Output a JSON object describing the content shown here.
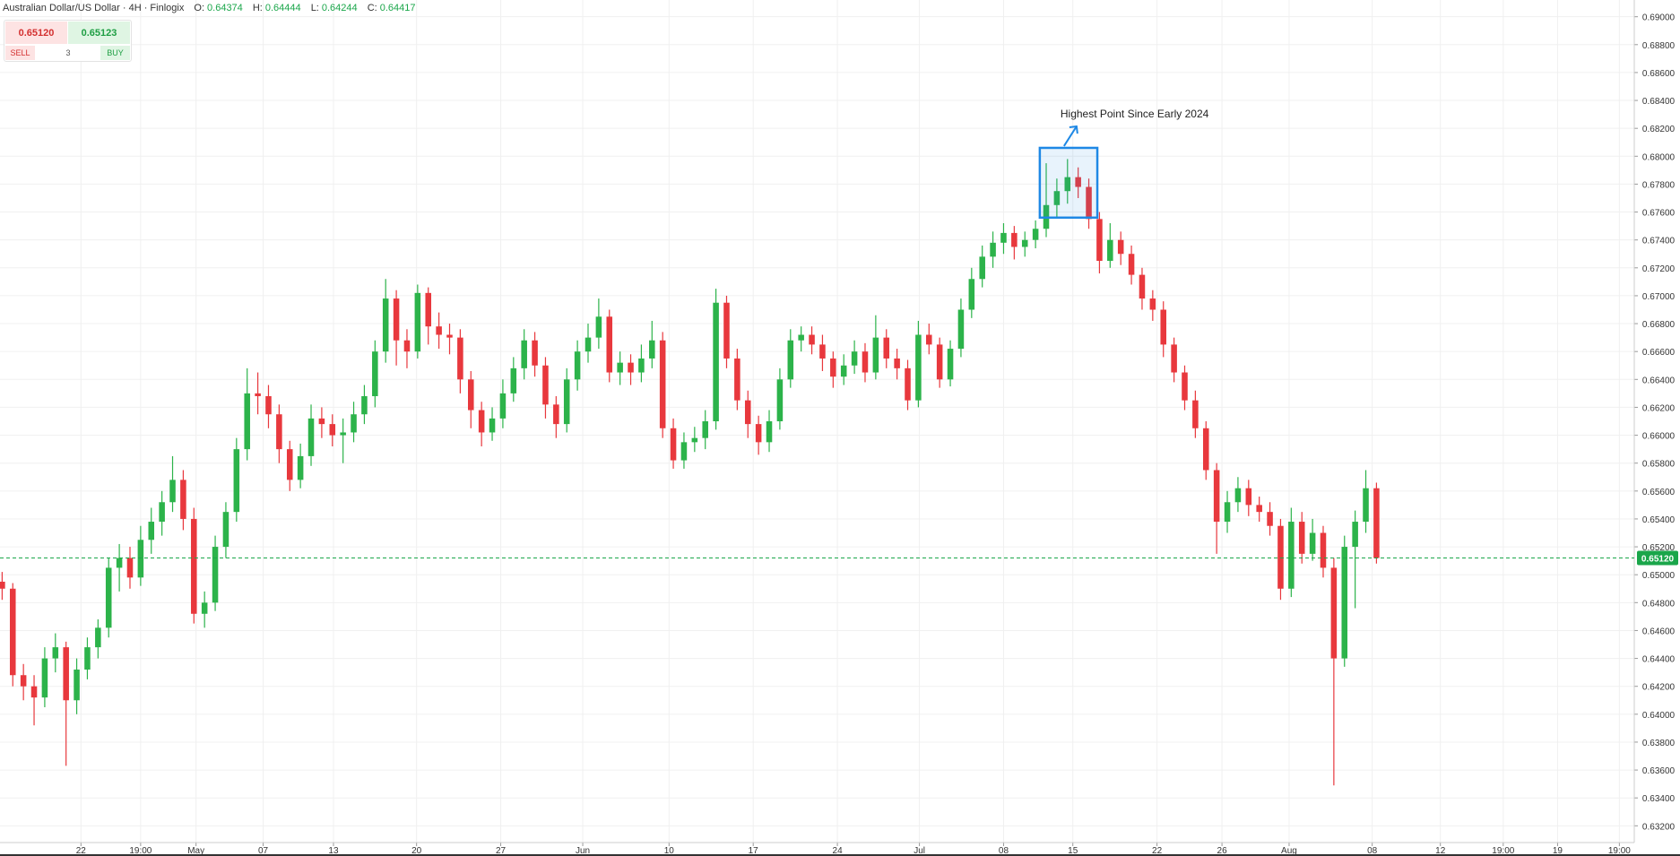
{
  "header": {
    "title": "Australian Dollar/US Dollar · 4H · Finlogix",
    "ohlc": [
      {
        "key": "O:",
        "value": "0.64374"
      },
      {
        "key": "H:",
        "value": "0.64444"
      },
      {
        "key": "L:",
        "value": "0.64244"
      },
      {
        "key": "C:",
        "value": "0.64417"
      }
    ]
  },
  "trade_widget": {
    "sell_price": "0.65120",
    "buy_price": "0.65123",
    "sell_label": "SELL",
    "quantity": "3",
    "buy_label": "BUY"
  },
  "chart_data": {
    "type": "candlestick",
    "up_color": "#2cb34a",
    "down_color": "#e8383d",
    "grid": true,
    "ylim": [
      0.6308,
      0.6912
    ],
    "xlim": [
      -0.2,
      153.2
    ],
    "yticks": [
      {
        "value": 0.632,
        "label": "0.63200"
      },
      {
        "value": 0.634,
        "label": "0.63400"
      },
      {
        "value": 0.636,
        "label": "0.63600"
      },
      {
        "value": 0.638,
        "label": "0.63800"
      },
      {
        "value": 0.64,
        "label": "0.64000"
      },
      {
        "value": 0.642,
        "label": "0.64200"
      },
      {
        "value": 0.644,
        "label": "0.64400"
      },
      {
        "value": 0.646,
        "label": "0.64600"
      },
      {
        "value": 0.648,
        "label": "0.64800"
      },
      {
        "value": 0.65,
        "label": "0.65000"
      },
      {
        "value": 0.652,
        "label": "0.65200"
      },
      {
        "value": 0.654,
        "label": "0.65400"
      },
      {
        "value": 0.656,
        "label": "0.65600"
      },
      {
        "value": 0.658,
        "label": "0.65800"
      },
      {
        "value": 0.66,
        "label": "0.66000"
      },
      {
        "value": 0.662,
        "label": "0.66200"
      },
      {
        "value": 0.664,
        "label": "0.66400"
      },
      {
        "value": 0.666,
        "label": "0.66600"
      },
      {
        "value": 0.668,
        "label": "0.66800"
      },
      {
        "value": 0.67,
        "label": "0.67000"
      },
      {
        "value": 0.672,
        "label": "0.67200"
      },
      {
        "value": 0.674,
        "label": "0.67400"
      },
      {
        "value": 0.676,
        "label": "0.67600"
      },
      {
        "value": 0.678,
        "label": "0.67800"
      },
      {
        "value": 0.68,
        "label": "0.68000"
      },
      {
        "value": 0.682,
        "label": "0.68200"
      },
      {
        "value": 0.684,
        "label": "0.68400"
      },
      {
        "value": 0.686,
        "label": "0.68600"
      },
      {
        "value": 0.688,
        "label": "0.68800"
      },
      {
        "value": 0.69,
        "label": "0.69000"
      }
    ],
    "xticks": [
      {
        "value": 7.4,
        "label": "22"
      },
      {
        "value": 13,
        "label": "19:00"
      },
      {
        "value": 18.2,
        "label": "May"
      },
      {
        "value": 24.5,
        "label": "07"
      },
      {
        "value": 31.1,
        "label": "13"
      },
      {
        "value": 38.9,
        "label": "20"
      },
      {
        "value": 46.8,
        "label": "27"
      },
      {
        "value": 54.5,
        "label": "Jun"
      },
      {
        "value": 62.6,
        "label": "10"
      },
      {
        "value": 70.5,
        "label": "17"
      },
      {
        "value": 78.4,
        "label": "24"
      },
      {
        "value": 86.1,
        "label": "Jul"
      },
      {
        "value": 94,
        "label": "08"
      },
      {
        "value": 100.5,
        "label": "15"
      },
      {
        "value": 108.4,
        "label": "22"
      },
      {
        "value": 114.5,
        "label": "26"
      },
      {
        "value": 120.8,
        "label": "Aug"
      },
      {
        "value": 128.6,
        "label": "08"
      },
      {
        "value": 135,
        "label": "12"
      },
      {
        "value": 140.9,
        "label": "19:00"
      },
      {
        "value": 146,
        "label": "19"
      },
      {
        "value": 151.8,
        "label": "19:00"
      }
    ],
    "current_price": {
      "value": 0.6512,
      "label": "0.65120",
      "color": "#1aa64a"
    },
    "annotation": {
      "text": "Highest Point Since Early 2024",
      "color": "#1e88e5",
      "xlim": [
        97.4,
        102.8
      ],
      "ylim": [
        0.6756,
        0.6806
      ]
    },
    "candles": [
      [
        0.6495,
        0.6502,
        0.6482,
        0.649
      ],
      [
        0.649,
        0.6494,
        0.642,
        0.6428
      ],
      [
        0.6428,
        0.6436,
        0.641,
        0.642
      ],
      [
        0.642,
        0.6428,
        0.6392,
        0.6412
      ],
      [
        0.6412,
        0.6448,
        0.6405,
        0.644
      ],
      [
        0.644,
        0.6458,
        0.643,
        0.6448
      ],
      [
        0.6448,
        0.6452,
        0.6363,
        0.641
      ],
      [
        0.641,
        0.644,
        0.64,
        0.6432
      ],
      [
        0.6432,
        0.6455,
        0.6425,
        0.6448
      ],
      [
        0.6448,
        0.6468,
        0.644,
        0.6462
      ],
      [
        0.6462,
        0.6512,
        0.6455,
        0.6505
      ],
      [
        0.6505,
        0.6522,
        0.6488,
        0.6512
      ],
      [
        0.6512,
        0.652,
        0.649,
        0.6498
      ],
      [
        0.6498,
        0.6535,
        0.6492,
        0.6525
      ],
      [
        0.6525,
        0.6548,
        0.6515,
        0.6538
      ],
      [
        0.6538,
        0.656,
        0.6528,
        0.6552
      ],
      [
        0.6552,
        0.6585,
        0.6545,
        0.6568
      ],
      [
        0.6568,
        0.6575,
        0.6532,
        0.654
      ],
      [
        0.654,
        0.6548,
        0.6465,
        0.6472
      ],
      [
        0.6472,
        0.6488,
        0.6462,
        0.648
      ],
      [
        0.648,
        0.6528,
        0.6474,
        0.652
      ],
      [
        0.652,
        0.6552,
        0.6512,
        0.6545
      ],
      [
        0.6545,
        0.6598,
        0.6538,
        0.659
      ],
      [
        0.659,
        0.6648,
        0.6582,
        0.663
      ],
      [
        0.663,
        0.6645,
        0.6615,
        0.6628
      ],
      [
        0.6628,
        0.6636,
        0.6605,
        0.6615
      ],
      [
        0.6615,
        0.6622,
        0.658,
        0.659
      ],
      [
        0.659,
        0.6596,
        0.656,
        0.6568
      ],
      [
        0.6568,
        0.6594,
        0.6562,
        0.6585
      ],
      [
        0.6585,
        0.6622,
        0.6578,
        0.6612
      ],
      [
        0.6612,
        0.662,
        0.6598,
        0.6608
      ],
      [
        0.6608,
        0.6615,
        0.6592,
        0.66
      ],
      [
        0.66,
        0.6612,
        0.658,
        0.6602
      ],
      [
        0.6602,
        0.6624,
        0.6595,
        0.6615
      ],
      [
        0.6615,
        0.6636,
        0.6608,
        0.6628
      ],
      [
        0.6628,
        0.6668,
        0.662,
        0.666
      ],
      [
        0.666,
        0.6712,
        0.6652,
        0.6698
      ],
      [
        0.6698,
        0.6704,
        0.665,
        0.6668
      ],
      [
        0.6668,
        0.6676,
        0.6648,
        0.666
      ],
      [
        0.666,
        0.6708,
        0.6655,
        0.6702
      ],
      [
        0.6702,
        0.6706,
        0.6665,
        0.6678
      ],
      [
        0.6678,
        0.6688,
        0.6662,
        0.6672
      ],
      [
        0.6672,
        0.668,
        0.6658,
        0.667
      ],
      [
        0.667,
        0.6676,
        0.663,
        0.664
      ],
      [
        0.664,
        0.6646,
        0.6605,
        0.6618
      ],
      [
        0.6618,
        0.6624,
        0.6592,
        0.6602
      ],
      [
        0.6602,
        0.662,
        0.6596,
        0.6612
      ],
      [
        0.6612,
        0.664,
        0.6605,
        0.663
      ],
      [
        0.663,
        0.6656,
        0.6624,
        0.6648
      ],
      [
        0.6648,
        0.6676,
        0.664,
        0.6668
      ],
      [
        0.6668,
        0.6674,
        0.6642,
        0.665
      ],
      [
        0.665,
        0.6656,
        0.6612,
        0.6622
      ],
      [
        0.6622,
        0.6628,
        0.6598,
        0.6608
      ],
      [
        0.6608,
        0.6648,
        0.6602,
        0.664
      ],
      [
        0.664,
        0.6668,
        0.6632,
        0.666
      ],
      [
        0.666,
        0.668,
        0.6652,
        0.667
      ],
      [
        0.667,
        0.6698,
        0.6662,
        0.6685
      ],
      [
        0.6685,
        0.669,
        0.6638,
        0.6645
      ],
      [
        0.6645,
        0.666,
        0.6636,
        0.6652
      ],
      [
        0.6652,
        0.6658,
        0.6636,
        0.6645
      ],
      [
        0.6645,
        0.6665,
        0.6638,
        0.6655
      ],
      [
        0.6655,
        0.6682,
        0.6648,
        0.6668
      ],
      [
        0.6668,
        0.6674,
        0.6598,
        0.6605
      ],
      [
        0.6605,
        0.6612,
        0.6576,
        0.6582
      ],
      [
        0.6582,
        0.6602,
        0.6576,
        0.6595
      ],
      [
        0.6595,
        0.6606,
        0.6588,
        0.6598
      ],
      [
        0.6598,
        0.6618,
        0.659,
        0.661
      ],
      [
        0.661,
        0.6705,
        0.6604,
        0.6695
      ],
      [
        0.6695,
        0.67,
        0.6648,
        0.6655
      ],
      [
        0.6655,
        0.6662,
        0.6618,
        0.6625
      ],
      [
        0.6625,
        0.6632,
        0.6598,
        0.6608
      ],
      [
        0.6608,
        0.6614,
        0.6586,
        0.6595
      ],
      [
        0.6595,
        0.6618,
        0.6588,
        0.661
      ],
      [
        0.661,
        0.6648,
        0.6604,
        0.664
      ],
      [
        0.664,
        0.6676,
        0.6634,
        0.6668
      ],
      [
        0.6668,
        0.6678,
        0.666,
        0.6672
      ],
      [
        0.6672,
        0.6678,
        0.6658,
        0.6665
      ],
      [
        0.6665,
        0.6672,
        0.6646,
        0.6655
      ],
      [
        0.6655,
        0.666,
        0.6634,
        0.6642
      ],
      [
        0.6642,
        0.6658,
        0.6636,
        0.665
      ],
      [
        0.665,
        0.6668,
        0.6644,
        0.666
      ],
      [
        0.666,
        0.6666,
        0.6638,
        0.6645
      ],
      [
        0.6645,
        0.6686,
        0.664,
        0.667
      ],
      [
        0.667,
        0.6676,
        0.6648,
        0.6655
      ],
      [
        0.6655,
        0.6662,
        0.664,
        0.6648
      ],
      [
        0.6648,
        0.6654,
        0.6618,
        0.6625
      ],
      [
        0.6625,
        0.6682,
        0.662,
        0.6672
      ],
      [
        0.6672,
        0.668,
        0.6658,
        0.6665
      ],
      [
        0.6665,
        0.667,
        0.6634,
        0.664
      ],
      [
        0.664,
        0.6668,
        0.6635,
        0.6662
      ],
      [
        0.6662,
        0.6698,
        0.6656,
        0.669
      ],
      [
        0.669,
        0.672,
        0.6684,
        0.6712
      ],
      [
        0.6712,
        0.6736,
        0.6706,
        0.6728
      ],
      [
        0.6728,
        0.6746,
        0.672,
        0.6738
      ],
      [
        0.6738,
        0.6752,
        0.673,
        0.6745
      ],
      [
        0.6745,
        0.675,
        0.6726,
        0.6735
      ],
      [
        0.6735,
        0.6746,
        0.6728,
        0.674
      ],
      [
        0.674,
        0.6754,
        0.6734,
        0.6748
      ],
      [
        0.6748,
        0.6795,
        0.6742,
        0.6765
      ],
      [
        0.6765,
        0.6784,
        0.6756,
        0.6775
      ],
      [
        0.6775,
        0.6798,
        0.6766,
        0.6785
      ],
      [
        0.6785,
        0.6792,
        0.677,
        0.6778
      ],
      [
        0.6778,
        0.6784,
        0.6748,
        0.6755
      ],
      [
        0.6755,
        0.676,
        0.6716,
        0.6725
      ],
      [
        0.6725,
        0.6752,
        0.672,
        0.674
      ],
      [
        0.674,
        0.6746,
        0.6722,
        0.673
      ],
      [
        0.673,
        0.6736,
        0.6708,
        0.6715
      ],
      [
        0.6715,
        0.672,
        0.669,
        0.6698
      ],
      [
        0.6698,
        0.6704,
        0.6682,
        0.669
      ],
      [
        0.669,
        0.6696,
        0.6656,
        0.6665
      ],
      [
        0.6665,
        0.667,
        0.6638,
        0.6645
      ],
      [
        0.6645,
        0.665,
        0.6618,
        0.6625
      ],
      [
        0.6625,
        0.6632,
        0.6598,
        0.6605
      ],
      [
        0.6605,
        0.661,
        0.6568,
        0.6575
      ],
      [
        0.6575,
        0.658,
        0.6515,
        0.6538
      ],
      [
        0.6538,
        0.656,
        0.653,
        0.6552
      ],
      [
        0.6552,
        0.657,
        0.6545,
        0.6562
      ],
      [
        0.6562,
        0.6568,
        0.6542,
        0.655
      ],
      [
        0.655,
        0.6556,
        0.6538,
        0.6545
      ],
      [
        0.6545,
        0.6552,
        0.6528,
        0.6535
      ],
      [
        0.6535,
        0.654,
        0.6482,
        0.649
      ],
      [
        0.649,
        0.6548,
        0.6484,
        0.6538
      ],
      [
        0.6538,
        0.6545,
        0.6508,
        0.6515
      ],
      [
        0.6515,
        0.654,
        0.651,
        0.653
      ],
      [
        0.653,
        0.6535,
        0.6498,
        0.6505
      ],
      [
        0.6505,
        0.6512,
        0.6349,
        0.644
      ],
      [
        0.644,
        0.6528,
        0.6434,
        0.652
      ],
      [
        0.652,
        0.6546,
        0.6476,
        0.6538
      ],
      [
        0.6538,
        0.6575,
        0.653,
        0.6562
      ],
      [
        0.6562,
        0.6566,
        0.6508,
        0.6512
      ]
    ]
  }
}
